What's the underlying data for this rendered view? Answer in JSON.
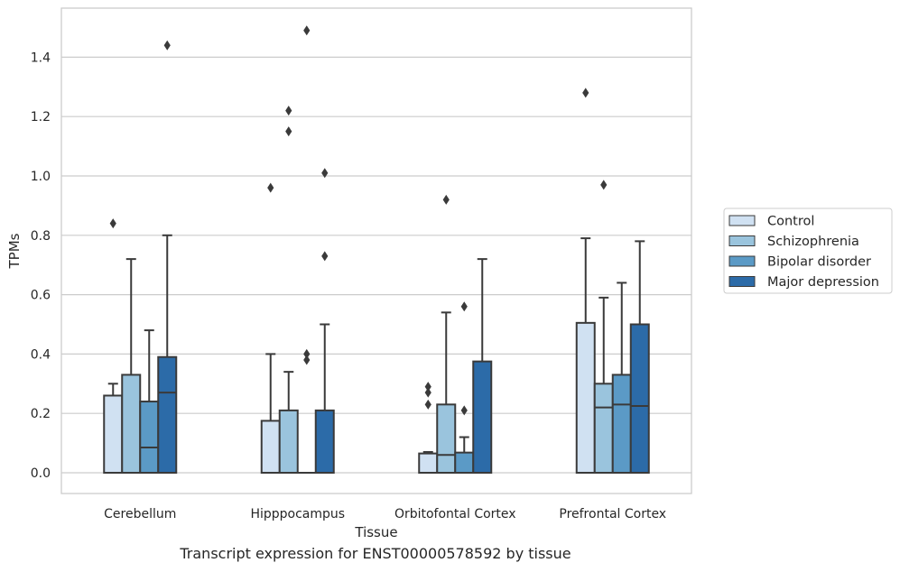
{
  "caption": "Transcript expression for ENST00000578592 by tissue",
  "chart_data": {
    "type": "box",
    "xlabel": "Tissue",
    "ylabel": "TPMs",
    "ylim": [
      -0.07,
      1.57
    ],
    "yticks": [
      0.0,
      0.2,
      0.4,
      0.6,
      0.8,
      1.0,
      1.2,
      1.4
    ],
    "ytick_labels": [
      "0.0",
      "0.2",
      "0.4",
      "0.6",
      "0.8",
      "1.0",
      "1.2",
      "1.4"
    ],
    "grid": "horizontal",
    "legend_position": "right",
    "categories": [
      "Cerebellum",
      "Hipppocampus",
      "Orbitofontal Cortex",
      "Prefrontal Cortex"
    ],
    "series": [
      {
        "name": "Control",
        "color": "#d0e1f2",
        "boxes": [
          {
            "q1": 0.0,
            "median": 0.0,
            "q3": 0.26,
            "whisker_low": 0.0,
            "whisker_high": 0.3,
            "outliers": [
              0.84
            ]
          },
          {
            "q1": 0.0,
            "median": 0.0,
            "q3": 0.175,
            "whisker_low": 0.0,
            "whisker_high": 0.4,
            "outliers": [
              0.96
            ]
          },
          {
            "q1": 0.0,
            "median": 0.0,
            "q3": 0.065,
            "whisker_low": 0.0,
            "whisker_high": 0.07,
            "outliers": [
              0.23,
              0.27,
              0.29
            ]
          },
          {
            "q1": 0.0,
            "median": 0.0,
            "q3": 0.505,
            "whisker_low": 0.0,
            "whisker_high": 0.79,
            "outliers": [
              1.28
            ]
          }
        ]
      },
      {
        "name": "Schizophrenia",
        "color": "#9ac4dd",
        "boxes": [
          {
            "q1": 0.0,
            "median": 0.0,
            "q3": 0.33,
            "whisker_low": 0.0,
            "whisker_high": 0.72,
            "outliers": []
          },
          {
            "q1": 0.0,
            "median": 0.0,
            "q3": 0.21,
            "whisker_low": 0.0,
            "whisker_high": 0.34,
            "outliers": [
              1.15,
              1.22
            ]
          },
          {
            "q1": 0.0,
            "median": 0.06,
            "q3": 0.23,
            "whisker_low": 0.0,
            "whisker_high": 0.54,
            "outliers": [
              0.92
            ]
          },
          {
            "q1": 0.0,
            "median": 0.22,
            "q3": 0.3,
            "whisker_low": 0.0,
            "whisker_high": 0.59,
            "outliers": [
              0.97
            ]
          }
        ]
      },
      {
        "name": "Bipolar disorder",
        "color": "#5b9ac6",
        "boxes": [
          {
            "q1": 0.0,
            "median": 0.085,
            "q3": 0.24,
            "whisker_low": 0.0,
            "whisker_high": 0.48,
            "outliers": []
          },
          {
            "q1": 0.0,
            "median": 0.0,
            "q3": 0.0,
            "whisker_low": 0.0,
            "whisker_high": 0.0,
            "outliers": [
              0.38,
              0.4,
              1.49
            ]
          },
          {
            "q1": 0.0,
            "median": 0.0,
            "q3": 0.068,
            "whisker_low": 0.0,
            "whisker_high": 0.12,
            "outliers": [
              0.21,
              0.56
            ]
          },
          {
            "q1": 0.0,
            "median": 0.23,
            "q3": 0.33,
            "whisker_low": 0.0,
            "whisker_high": 0.64,
            "outliers": []
          }
        ]
      },
      {
        "name": "Major depression",
        "color": "#2c6ba8",
        "boxes": [
          {
            "q1": 0.0,
            "median": 0.27,
            "q3": 0.39,
            "whisker_low": 0.0,
            "whisker_high": 0.8,
            "outliers": [
              1.44
            ]
          },
          {
            "q1": 0.0,
            "median": 0.0,
            "q3": 0.21,
            "whisker_low": 0.0,
            "whisker_high": 0.5,
            "outliers": [
              0.73,
              1.01
            ]
          },
          {
            "q1": 0.0,
            "median": 0.0,
            "q3": 0.375,
            "whisker_low": 0.0,
            "whisker_high": 0.72,
            "outliers": []
          },
          {
            "q1": 0.0,
            "median": 0.225,
            "q3": 0.5,
            "whisker_low": 0.0,
            "whisker_high": 0.78,
            "outliers": []
          }
        ]
      }
    ]
  }
}
